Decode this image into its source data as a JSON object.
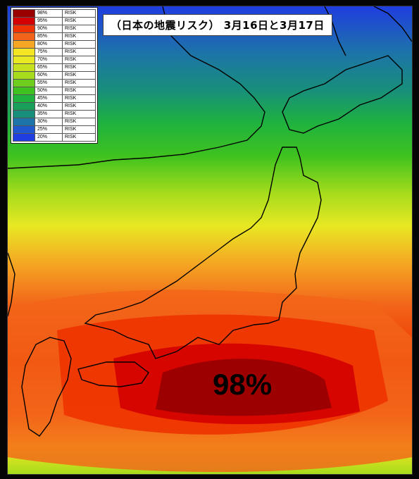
{
  "title": "（日本の地震リスク） 3月16日と3月17日",
  "peak_label": "98%",
  "legend": [
    {
      "pct": "98%",
      "label": "RISK",
      "color": "#990000"
    },
    {
      "pct": "95%",
      "label": "RISK",
      "color": "#d40000"
    },
    {
      "pct": "90%",
      "label": "RISK",
      "color": "#ee3300"
    },
    {
      "pct": "85%",
      "label": "RISK",
      "color": "#f26419"
    },
    {
      "pct": "80%",
      "label": "RISK",
      "color": "#f5a623"
    },
    {
      "pct": "75%",
      "label": "RISK",
      "color": "#f5e623"
    },
    {
      "pct": "70%",
      "label": "RISK",
      "color": "#e8e823"
    },
    {
      "pct": "65%",
      "label": "RISK",
      "color": "#c6e21f"
    },
    {
      "pct": "60%",
      "label": "RISK",
      "color": "#a6dc1c"
    },
    {
      "pct": "55%",
      "label": "RISK",
      "color": "#6fce1d"
    },
    {
      "pct": "50%",
      "label": "RISK",
      "color": "#3fc21f"
    },
    {
      "pct": "45%",
      "label": "RISK",
      "color": "#1fb23e"
    },
    {
      "pct": "40%",
      "label": "RISK",
      "color": "#1a9f5a"
    },
    {
      "pct": "35%",
      "label": "RISK",
      "color": "#188f7a"
    },
    {
      "pct": "30%",
      "label": "RISK",
      "color": "#1d74a8"
    },
    {
      "pct": "25%",
      "label": "RISK",
      "color": "#1e57d0"
    },
    {
      "pct": "20%",
      "label": "RISK",
      "color": "#1f3de0"
    }
  ]
}
